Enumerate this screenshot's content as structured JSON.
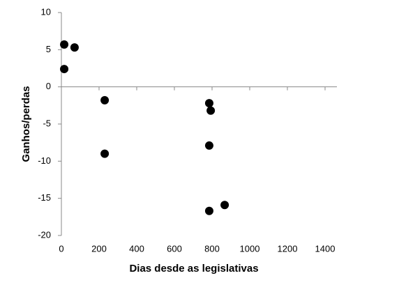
{
  "chart_data": {
    "type": "scatter",
    "x_label": "Dias desde as legislativas",
    "y_label": "Ganhos/perdas",
    "x": [
      15,
      70,
      15,
      230,
      230,
      785,
      793,
      785,
      785,
      867
    ],
    "values": [
      5.7,
      5.3,
      2.4,
      -1.8,
      -9.0,
      -2.2,
      -3.2,
      -7.9,
      -16.7,
      -15.9
    ],
    "color": "#000000",
    "xlim": [
      0,
      1400
    ],
    "xticks": [
      0,
      200,
      400,
      600,
      800,
      1000,
      1200,
      1400
    ],
    "ylim": [
      -20,
      10
    ],
    "yticks": [
      -20,
      -15,
      -10,
      -5,
      0,
      5,
      10
    ]
  }
}
